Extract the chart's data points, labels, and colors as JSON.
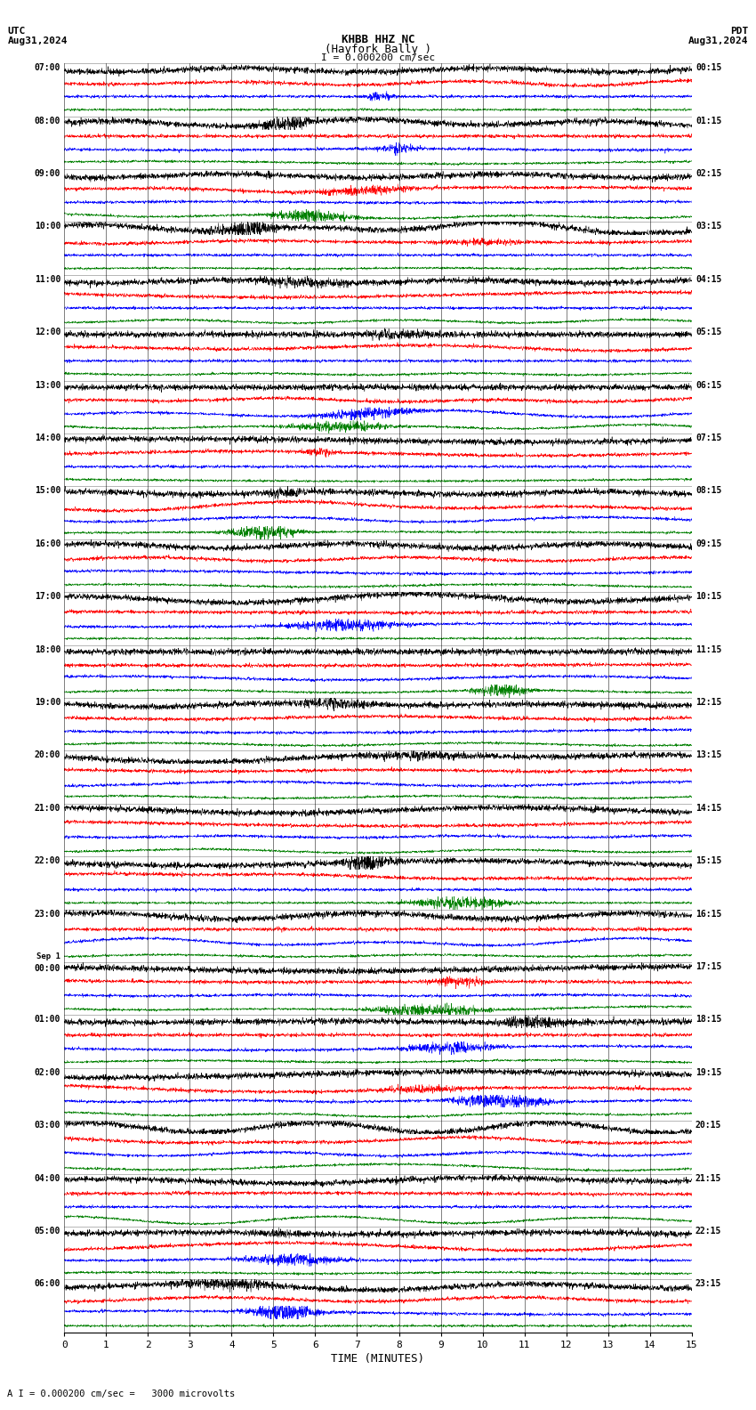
{
  "title_line1": "KHBB HHZ NC",
  "title_line2": "(Hayfork Bally )",
  "scale_label": "I = 0.000200 cm/sec",
  "utc_label": "UTC",
  "utc_date": "Aug31,2024",
  "pdt_label": "PDT",
  "pdt_date": "Aug31,2024",
  "xlabel": "TIME (MINUTES)",
  "bottom_label": "A I = 0.000200 cm/sec =   3000 microvolts",
  "left_times": [
    "07:00",
    "08:00",
    "09:00",
    "10:00",
    "11:00",
    "12:00",
    "13:00",
    "14:00",
    "15:00",
    "16:00",
    "17:00",
    "18:00",
    "19:00",
    "20:00",
    "21:00",
    "22:00",
    "23:00",
    "Sep 1\n00:00",
    "01:00",
    "02:00",
    "03:00",
    "04:00",
    "05:00",
    "06:00"
  ],
  "right_times": [
    "00:15",
    "01:15",
    "02:15",
    "03:15",
    "04:15",
    "05:15",
    "06:15",
    "07:15",
    "08:15",
    "09:15",
    "10:15",
    "11:15",
    "12:15",
    "13:15",
    "14:15",
    "15:15",
    "16:15",
    "17:15",
    "18:15",
    "19:15",
    "20:15",
    "21:15",
    "22:15",
    "23:15"
  ],
  "n_rows": 24,
  "n_traces_per_row": 4,
  "minutes": 15,
  "bg_color": "#ffffff",
  "trace_colors": [
    "#000000",
    "#ff0000",
    "#0000ff",
    "#008000"
  ],
  "fig_width": 8.5,
  "fig_height": 15.84,
  "dpi": 100
}
